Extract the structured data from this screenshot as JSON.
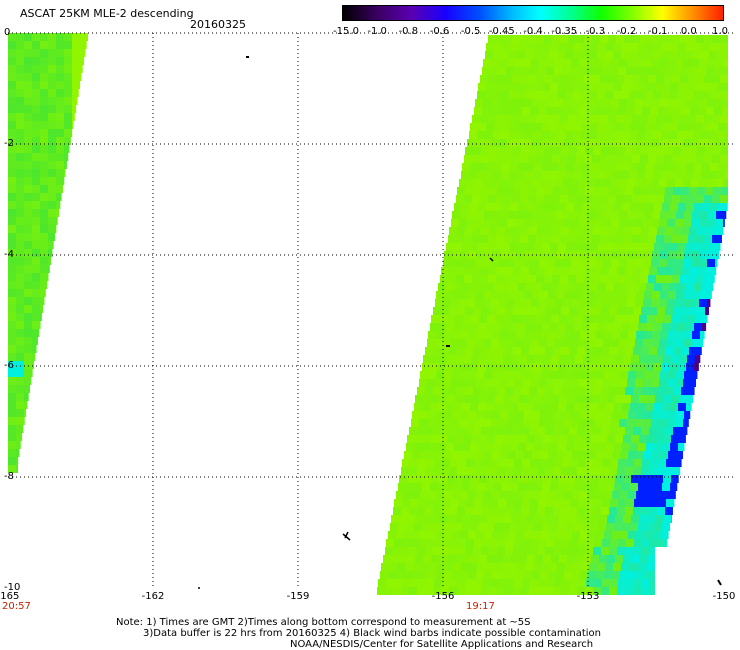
{
  "header": {
    "title": "ASCAT 25KM MLE-2 descending",
    "date": "20160325"
  },
  "colorbar": {
    "labels": [
      "-15.0",
      "-1.0",
      "-0.8",
      "-0.6",
      "-0.5",
      "-0.45",
      "-0.4",
      "-0.35",
      "-0.3",
      "-0.2",
      "-0.1",
      "0.0",
      "1.0"
    ],
    "colors": [
      "#000000",
      "#3a0060",
      "#5a00b0",
      "#1800ff",
      "#0050ff",
      "#00a0ff",
      "#00ffff",
      "#00ff90",
      "#10ff00",
      "#80ff00",
      "#ffff00",
      "#ff9000",
      "#ff2000"
    ]
  },
  "axes": {
    "y_labels": [
      "0",
      "-2",
      "-4",
      "-6",
      "-8",
      "-10"
    ],
    "x_labels": [
      "-165",
      "-162",
      "-159",
      "-156",
      "-153",
      "-150"
    ],
    "times": [
      "20:57",
      "19:17"
    ]
  },
  "notes": {
    "line1": "Note: 1) Times are GMT 2)Times along bottom correspond to measurement at ~5S",
    "line2": "3)Data buffer is 22 hrs from 20160325 4) Black wind barbs indicate possible contamination",
    "line3": "NOAA/NESDIS/Center for Satellite Applications and Research"
  },
  "palette": {
    "main_green": "#74f010",
    "lime": "#92f500",
    "cyan": "#00f0e0",
    "blue": "#0020ff",
    "purple": "#4a0090"
  }
}
